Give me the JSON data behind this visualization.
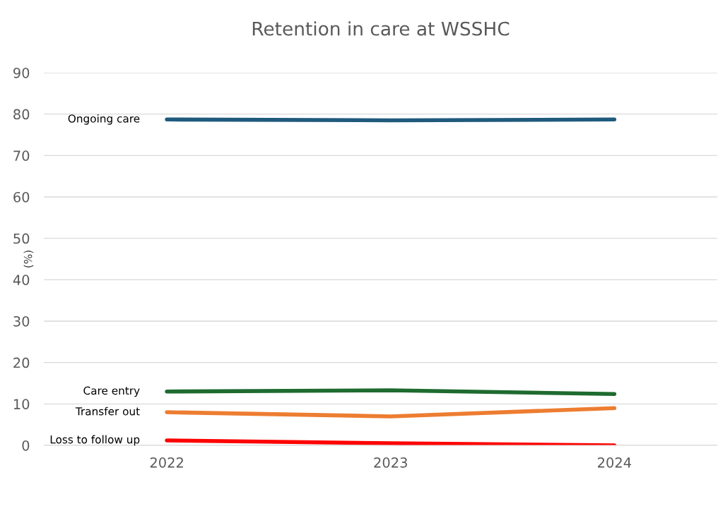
{
  "chart_data": {
    "type": "line",
    "title": "Retention in care at WSSHC",
    "ylabel": "(%)",
    "categories": [
      "2022",
      "2023",
      "2024"
    ],
    "series": [
      {
        "name": "Ongoing care",
        "color": "#1f5a7d",
        "values": [
          78.7,
          78.5,
          78.7
        ]
      },
      {
        "name": "Care entry",
        "color": "#1e6b2f",
        "values": [
          13.0,
          13.3,
          12.4
        ]
      },
      {
        "name": "Transfer out",
        "color": "#ed7d31",
        "values": [
          8.0,
          7.0,
          9.0
        ]
      },
      {
        "name": "Loss to follow up",
        "color": "#ff0000",
        "values": [
          1.2,
          0.5,
          0.0
        ]
      }
    ],
    "ylim": [
      0,
      90
    ],
    "yticks": [
      0,
      10,
      20,
      30,
      40,
      50,
      60,
      70,
      80,
      90
    ],
    "grid": "y",
    "legend": false,
    "marker": "none",
    "line_style": "solid"
  }
}
